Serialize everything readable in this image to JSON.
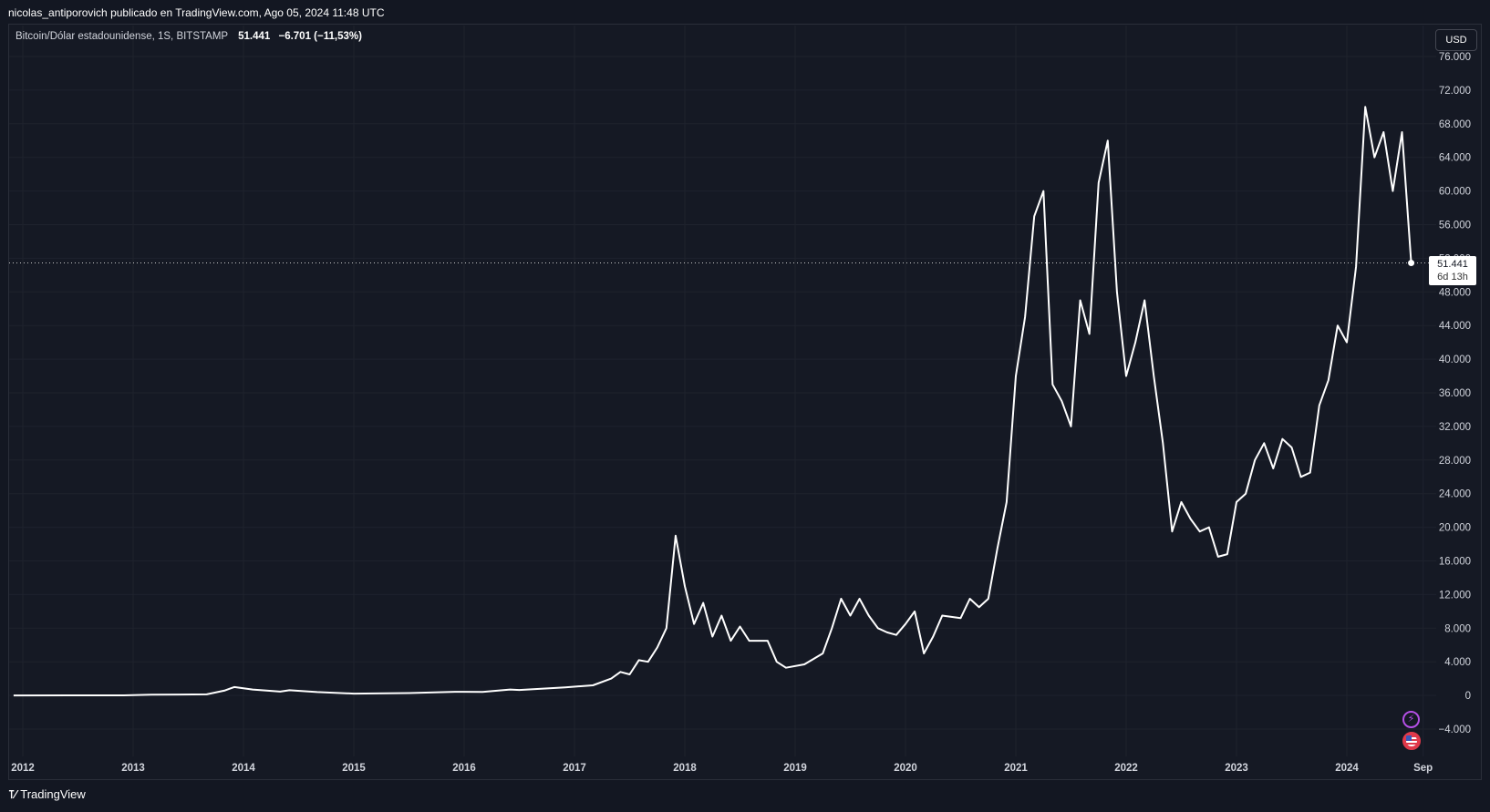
{
  "header": {
    "attribution": "nicolas_antiporovich publicado en TradingView.com, Ago 05, 2024 11:48 UTC"
  },
  "legend": {
    "symbol": "Bitcoin/Dólar estadounidense, 1S, BITSTAMP",
    "last": "51.441",
    "change": "−6.701 (−11,53%)"
  },
  "currency_button": "USD",
  "price_tag": {
    "price": "51.441",
    "countdown": "6d 13h"
  },
  "footer": {
    "brand": "TradingView"
  },
  "colors": {
    "background": "#131722",
    "line": "#ffffff",
    "grid": "#1e222d"
  },
  "chart_data": {
    "type": "line",
    "y_ticks": [
      "76.000",
      "72.000",
      "68.000",
      "64.000",
      "60.000",
      "56.000",
      "52.000",
      "48.000",
      "44.000",
      "40.000",
      "36.000",
      "32.000",
      "28.000",
      "24.000",
      "20.000",
      "16.000",
      "12.000",
      "8.000",
      "4.000",
      "0",
      "−4.000"
    ],
    "x_ticks": [
      "2012",
      "2013",
      "2014",
      "2015",
      "2016",
      "2017",
      "2018",
      "2019",
      "2020",
      "2021",
      "2022",
      "2023",
      "2024",
      "Sep"
    ],
    "ylim": [
      -4000,
      76000
    ],
    "grid": true,
    "series": [
      {
        "points": [
          [
            "2011-12",
            3
          ],
          [
            "2012-06",
            6
          ],
          [
            "2012-12",
            13
          ],
          [
            "2013-03",
            90
          ],
          [
            "2013-06",
            110
          ],
          [
            "2013-09",
            130
          ],
          [
            "2013-11",
            600
          ],
          [
            "2013-12",
            1000
          ],
          [
            "2014-02",
            700
          ],
          [
            "2014-05",
            450
          ],
          [
            "2014-06",
            620
          ],
          [
            "2014-09",
            400
          ],
          [
            "2015-01",
            220
          ],
          [
            "2015-07",
            280
          ],
          [
            "2015-12",
            430
          ],
          [
            "2016-03",
            420
          ],
          [
            "2016-06",
            700
          ],
          [
            "2016-07",
            650
          ],
          [
            "2016-12",
            960
          ],
          [
            "2017-03",
            1200
          ],
          [
            "2017-05",
            2000
          ],
          [
            "2017-06",
            2800
          ],
          [
            "2017-07",
            2500
          ],
          [
            "2017-08",
            4200
          ],
          [
            "2017-09",
            4000
          ],
          [
            "2017-10",
            5700
          ],
          [
            "2017-11",
            8000
          ],
          [
            "2017-12",
            19000
          ],
          [
            "2018-01",
            13000
          ],
          [
            "2018-02",
            8500
          ],
          [
            "2018-03",
            11000
          ],
          [
            "2018-04",
            7000
          ],
          [
            "2018-05",
            9500
          ],
          [
            "2018-06",
            6500
          ],
          [
            "2018-07",
            8200
          ],
          [
            "2018-08",
            6500
          ],
          [
            "2018-10",
            6500
          ],
          [
            "2018-11",
            4000
          ],
          [
            "2018-12",
            3300
          ],
          [
            "2019-02",
            3700
          ],
          [
            "2019-04",
            5000
          ],
          [
            "2019-05",
            8000
          ],
          [
            "2019-06",
            11500
          ],
          [
            "2019-07",
            9500
          ],
          [
            "2019-08",
            11500
          ],
          [
            "2019-09",
            9500
          ],
          [
            "2019-10",
            8000
          ],
          [
            "2019-11",
            7500
          ],
          [
            "2019-12",
            7200
          ],
          [
            "2020-01",
            8500
          ],
          [
            "2020-02",
            10000
          ],
          [
            "2020-03",
            5000
          ],
          [
            "2020-04",
            7000
          ],
          [
            "2020-05",
            9500
          ],
          [
            "2020-07",
            9200
          ],
          [
            "2020-08",
            11500
          ],
          [
            "2020-09",
            10500
          ],
          [
            "2020-10",
            11500
          ],
          [
            "2020-11",
            17500
          ],
          [
            "2020-12",
            23000
          ],
          [
            "2021-01",
            38000
          ],
          [
            "2021-02",
            45000
          ],
          [
            "2021-03",
            57000
          ],
          [
            "2021-04",
            60000
          ],
          [
            "2021-05",
            37000
          ],
          [
            "2021-06",
            35000
          ],
          [
            "2021-07",
            32000
          ],
          [
            "2021-08",
            47000
          ],
          [
            "2021-09",
            43000
          ],
          [
            "2021-10",
            61000
          ],
          [
            "2021-11",
            66000
          ],
          [
            "2021-12",
            48000
          ],
          [
            "2022-01",
            38000
          ],
          [
            "2022-02",
            42000
          ],
          [
            "2022-03",
            47000
          ],
          [
            "2022-04",
            38000
          ],
          [
            "2022-05",
            30000
          ],
          [
            "2022-06",
            19500
          ],
          [
            "2022-07",
            23000
          ],
          [
            "2022-08",
            21000
          ],
          [
            "2022-09",
            19500
          ],
          [
            "2022-10",
            20000
          ],
          [
            "2022-11",
            16500
          ],
          [
            "2022-12",
            16800
          ],
          [
            "2023-01",
            23000
          ],
          [
            "2023-02",
            24000
          ],
          [
            "2023-03",
            28000
          ],
          [
            "2023-04",
            30000
          ],
          [
            "2023-05",
            27000
          ],
          [
            "2023-06",
            30500
          ],
          [
            "2023-07",
            29500
          ],
          [
            "2023-08",
            26000
          ],
          [
            "2023-09",
            26500
          ],
          [
            "2023-10",
            34500
          ],
          [
            "2023-11",
            37500
          ],
          [
            "2023-12",
            44000
          ],
          [
            "2024-01",
            42000
          ],
          [
            "2024-02",
            51000
          ],
          [
            "2024-03",
            70000
          ],
          [
            "2024-04",
            64000
          ],
          [
            "2024-05",
            67000
          ],
          [
            "2024-06",
            60000
          ],
          [
            "2024-07",
            67000
          ],
          [
            "2024-08",
            51441
          ]
        ]
      }
    ],
    "last_value": 51441
  }
}
